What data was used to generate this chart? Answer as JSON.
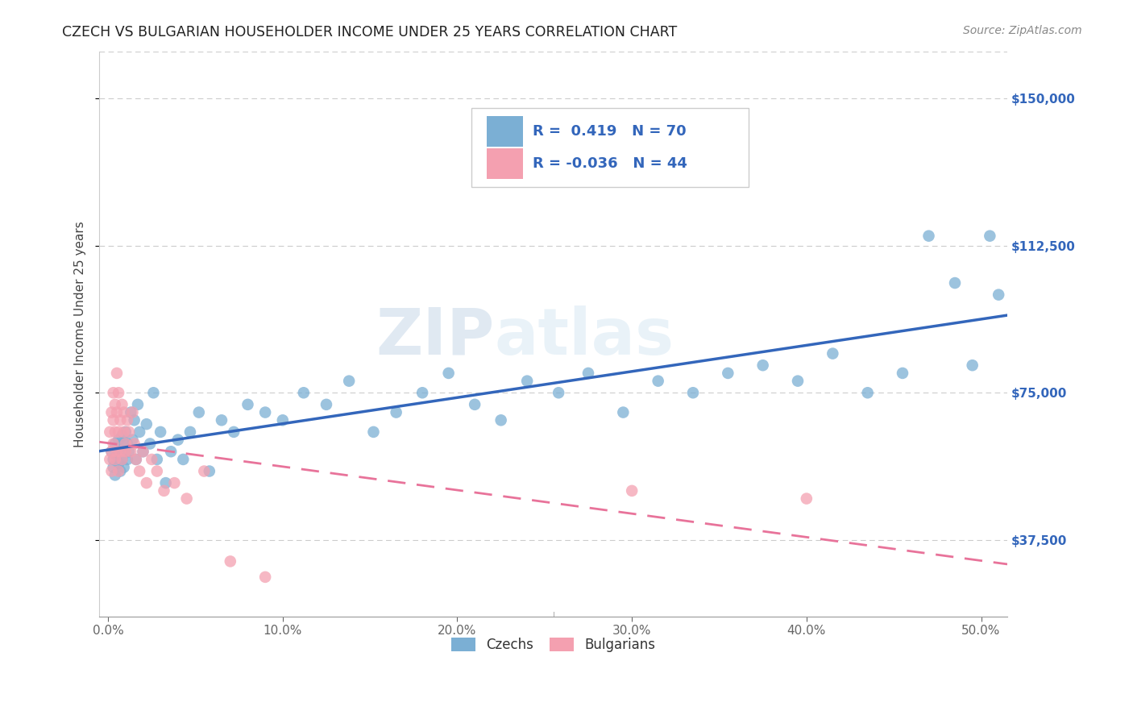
{
  "title": "CZECH VS BULGARIAN HOUSEHOLDER INCOME UNDER 25 YEARS CORRELATION CHART",
  "source": "Source: ZipAtlas.com",
  "ylabel": "Householder Income Under 25 years",
  "xlabel_ticks": [
    "0.0%",
    "10.0%",
    "20.0%",
    "30.0%",
    "40.0%",
    "50.0%"
  ],
  "xlabel_vals": [
    0.0,
    0.1,
    0.2,
    0.3,
    0.4,
    0.5
  ],
  "ytick_labels": [
    "$37,500",
    "$75,000",
    "$112,500",
    "$150,000"
  ],
  "ytick_vals": [
    37500,
    75000,
    112500,
    150000
  ],
  "ymin": 18000,
  "ymax": 162000,
  "xmin": -0.005,
  "xmax": 0.515,
  "czech_R": 0.419,
  "czech_N": 70,
  "bulg_R": -0.036,
  "bulg_N": 44,
  "czech_color": "#7BAFD4",
  "bulg_color": "#F4A0B0",
  "czech_line_color": "#3366BB",
  "bulg_line_color": "#E8739A",
  "legend_label_czech": "Czechs",
  "legend_label_bulg": "Bulgarians",
  "czech_x": [
    0.002,
    0.003,
    0.003,
    0.004,
    0.004,
    0.005,
    0.005,
    0.006,
    0.006,
    0.007,
    0.007,
    0.008,
    0.008,
    0.009,
    0.009,
    0.01,
    0.01,
    0.011,
    0.011,
    0.012,
    0.013,
    0.014,
    0.015,
    0.016,
    0.017,
    0.018,
    0.02,
    0.022,
    0.024,
    0.026,
    0.028,
    0.03,
    0.033,
    0.036,
    0.04,
    0.043,
    0.047,
    0.052,
    0.058,
    0.065,
    0.072,
    0.08,
    0.09,
    0.1,
    0.112,
    0.125,
    0.138,
    0.152,
    0.165,
    0.18,
    0.195,
    0.21,
    0.225,
    0.24,
    0.258,
    0.275,
    0.295,
    0.315,
    0.335,
    0.355,
    0.375,
    0.395,
    0.415,
    0.435,
    0.455,
    0.47,
    0.485,
    0.495,
    0.505,
    0.51
  ],
  "czech_y": [
    60000,
    58000,
    56000,
    62000,
    54000,
    59000,
    61000,
    63000,
    57000,
    60000,
    55000,
    64000,
    58000,
    62000,
    56000,
    60000,
    65000,
    58000,
    62000,
    60000,
    70000,
    63000,
    68000,
    58000,
    72000,
    65000,
    60000,
    67000,
    62000,
    75000,
    58000,
    65000,
    52000,
    60000,
    63000,
    58000,
    65000,
    70000,
    55000,
    68000,
    65000,
    72000,
    70000,
    68000,
    75000,
    72000,
    78000,
    65000,
    70000,
    75000,
    80000,
    72000,
    68000,
    78000,
    75000,
    80000,
    70000,
    78000,
    75000,
    80000,
    82000,
    78000,
    85000,
    75000,
    80000,
    115000,
    103000,
    82000,
    115000,
    100000
  ],
  "bulg_x": [
    0.001,
    0.001,
    0.002,
    0.002,
    0.002,
    0.003,
    0.003,
    0.003,
    0.004,
    0.004,
    0.004,
    0.005,
    0.005,
    0.005,
    0.006,
    0.006,
    0.006,
    0.007,
    0.007,
    0.008,
    0.008,
    0.009,
    0.009,
    0.01,
    0.01,
    0.011,
    0.012,
    0.013,
    0.014,
    0.015,
    0.016,
    0.018,
    0.02,
    0.022,
    0.025,
    0.028,
    0.032,
    0.038,
    0.045,
    0.055,
    0.07,
    0.09,
    0.3,
    0.4
  ],
  "bulg_y": [
    58000,
    65000,
    60000,
    70000,
    55000,
    75000,
    68000,
    62000,
    72000,
    65000,
    58000,
    80000,
    70000,
    60000,
    75000,
    65000,
    55000,
    68000,
    60000,
    72000,
    58000,
    65000,
    70000,
    60000,
    62000,
    68000,
    65000,
    60000,
    70000,
    62000,
    58000,
    55000,
    60000,
    52000,
    58000,
    55000,
    50000,
    52000,
    48000,
    55000,
    32000,
    28000,
    50000,
    48000
  ]
}
